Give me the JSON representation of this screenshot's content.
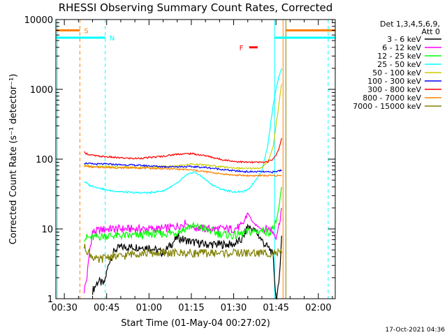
{
  "chart_data": {
    "type": "line",
    "title": "RHESSI Observing Summary Count Rates, Corrected",
    "xlabel": "Start Time (01-May-04 00:27:02)",
    "ylabel": "Corrected Count Rate (s⁻¹ detector⁻¹)",
    "yscale": "log",
    "xlim_minutes": [
      27.0,
      126.0
    ],
    "ylim": [
      1,
      10000
    ],
    "x_ticks": [
      {
        "label": "00:30",
        "minute": 30
      },
      {
        "label": "00:45",
        "minute": 45
      },
      {
        "label": "01:00",
        "minute": 60
      },
      {
        "label": "01:15",
        "minute": 75
      },
      {
        "label": "01:30",
        "minute": 90
      },
      {
        "label": "01:45",
        "minute": 105
      },
      {
        "label": "02:00",
        "minute": 120
      }
    ],
    "y_ticks": [
      {
        "label": "1",
        "value": 1
      },
      {
        "label": "10",
        "value": 10
      },
      {
        "label": "100",
        "value": 100
      },
      {
        "label": "1000",
        "value": 1000
      },
      {
        "label": "10000",
        "value": 10000
      }
    ],
    "legend_header": [
      "Det 1,3,4,5,6,9,",
      "Att 0"
    ],
    "legend_position": "right",
    "series": [
      {
        "name": "3 - 6 keV",
        "color": "#000000",
        "x": [
          40,
          42,
          44,
          46,
          48,
          50,
          55,
          60,
          65,
          70,
          75,
          80,
          85,
          90,
          93,
          95,
          98,
          101,
          103,
          104,
          105,
          106,
          107
        ],
        "y": [
          1.3,
          1.8,
          1.6,
          3.5,
          5,
          5.5,
          5.5,
          5.5,
          4.5,
          7.5,
          6.5,
          6,
          6,
          6,
          7,
          11,
          9,
          6,
          5,
          4,
          1,
          1.5,
          8
        ]
      },
      {
        "name": "6 - 12 keV",
        "color": "#ff00ff",
        "x": [
          37,
          38,
          39,
          40,
          42,
          45,
          50,
          55,
          60,
          65,
          70,
          73,
          76,
          80,
          85,
          90,
          93,
          95,
          97,
          100,
          103,
          105,
          106,
          107
        ],
        "y": [
          1.3,
          2,
          5,
          9,
          9.5,
          10,
          10,
          10,
          10,
          10,
          11,
          12,
          10.5,
          10,
          10,
          10,
          11,
          17,
          12,
          10,
          10,
          8,
          11,
          20
        ]
      },
      {
        "name": "12 - 25 keV",
        "color": "#00ff00",
        "x": [
          37,
          40,
          45,
          50,
          55,
          60,
          65,
          70,
          75,
          80,
          85,
          90,
          95,
          100,
          103,
          105,
          106,
          107
        ],
        "y": [
          7.5,
          7.5,
          8,
          8,
          8,
          8.5,
          8.5,
          9,
          11,
          10,
          8.5,
          8,
          9,
          9.5,
          9,
          12,
          20,
          40
        ]
      },
      {
        "name": "25 - 50 keV",
        "color": "#00ffff",
        "x": [
          37,
          39,
          42,
          45,
          50,
          55,
          60,
          65,
          70,
          73,
          76,
          79,
          82,
          85,
          88,
          90,
          93,
          95,
          97,
          100,
          102,
          103,
          104,
          105,
          106,
          107
        ],
        "y": [
          48,
          42,
          39,
          36,
          34,
          33,
          33,
          35,
          45,
          58,
          66,
          55,
          44,
          38,
          35,
          34,
          34,
          36,
          45,
          70,
          150,
          300,
          600,
          1000,
          1500,
          2000
        ]
      },
      {
        "name": "50 - 100 keV",
        "color": "#cccc00",
        "x": [
          37,
          40,
          45,
          50,
          55,
          60,
          65,
          70,
          75,
          80,
          85,
          90,
          95,
          100,
          102,
          104,
          105,
          106,
          107
        ],
        "y": [
          82,
          78,
          78,
          77,
          76,
          76,
          78,
          80,
          85,
          82,
          78,
          75,
          73,
          75,
          90,
          150,
          300,
          600,
          1200
        ]
      },
      {
        "name": "100 - 300 keV",
        "color": "#0000ff",
        "x": [
          37,
          40,
          45,
          50,
          55,
          60,
          65,
          70,
          75,
          80,
          85,
          90,
          95,
          100,
          103,
          105,
          106,
          107
        ],
        "y": [
          88,
          85,
          85,
          83,
          82,
          80,
          78,
          78,
          78,
          76,
          72,
          68,
          66,
          66,
          65,
          66,
          68,
          70
        ]
      },
      {
        "name": "300 - 800 keV",
        "color": "#ff0000",
        "x": [
          37,
          39,
          42,
          45,
          50,
          55,
          60,
          65,
          70,
          75,
          80,
          85,
          90,
          95,
          100,
          102,
          104,
          105,
          106,
          107
        ],
        "y": [
          125,
          115,
          110,
          108,
          104,
          102,
          105,
          110,
          118,
          120,
          112,
          100,
          93,
          90,
          90,
          92,
          100,
          115,
          140,
          200
        ]
      },
      {
        "name": "800 - 7000 keV",
        "color": "#ff8000",
        "x": [
          37,
          40,
          45,
          50,
          55,
          60,
          65,
          70,
          75,
          80,
          85,
          90,
          95,
          100,
          103,
          105,
          107
        ],
        "y": [
          80,
          77,
          76,
          75,
          75,
          74,
          73,
          72,
          70,
          66,
          62,
          59,
          58,
          58,
          58,
          58,
          58
        ]
      },
      {
        "name": "7000 - 15000 keV",
        "color": "#808000",
        "x": [
          37,
          40,
          42,
          45,
          50,
          55,
          60,
          65,
          70,
          75,
          80,
          85,
          90,
          95,
          100,
          103,
          105,
          107
        ],
        "y": [
          5.5,
          4,
          3.5,
          4,
          4,
          4.5,
          4.5,
          4.5,
          4.5,
          4.5,
          4.5,
          4.5,
          4.5,
          4.5,
          4.5,
          4.5,
          4.5,
          4.5
        ]
      }
    ],
    "vertical_markers": [
      {
        "x": 27.5,
        "color": "#00ffff",
        "style": "solid"
      },
      {
        "x": 35.5,
        "color": "#ff8000",
        "style": "dashed"
      },
      {
        "x": 44.5,
        "color": "#00ffff",
        "style": "dashed"
      },
      {
        "x": 104.5,
        "color": "#00ffff",
        "style": "solid"
      },
      {
        "x": 107.5,
        "color": "#ff8000",
        "style": "solid"
      },
      {
        "x": 108.5,
        "color": "#808000",
        "style": "solid"
      },
      {
        "x": 123.5,
        "color": "#00ffff",
        "style": "dashed"
      }
    ],
    "flag_bars": [
      {
        "label": "S",
        "color": "#ff8000",
        "x_start": 27,
        "x_end": 35.5,
        "y": 7000,
        "label_at": 37
      },
      {
        "label": "N",
        "color": "#00ffff",
        "x_start": 27,
        "x_end": 44.5,
        "y": 5500,
        "label_at": 46
      },
      {
        "label": "F",
        "color": "#ff0000",
        "x_start": 95.5,
        "x_end": 98.5,
        "y": 4000,
        "label_at": 92
      },
      {
        "label": "",
        "color": "#ff8000",
        "x_start": 108.5,
        "x_end": 126,
        "y": 7000
      },
      {
        "label": "",
        "color": "#00ffff",
        "x_start": 104.5,
        "x_end": 126,
        "y": 5500
      }
    ],
    "grid": false
  },
  "footer": {
    "timestamp": "17-Oct-2021 04:36"
  }
}
